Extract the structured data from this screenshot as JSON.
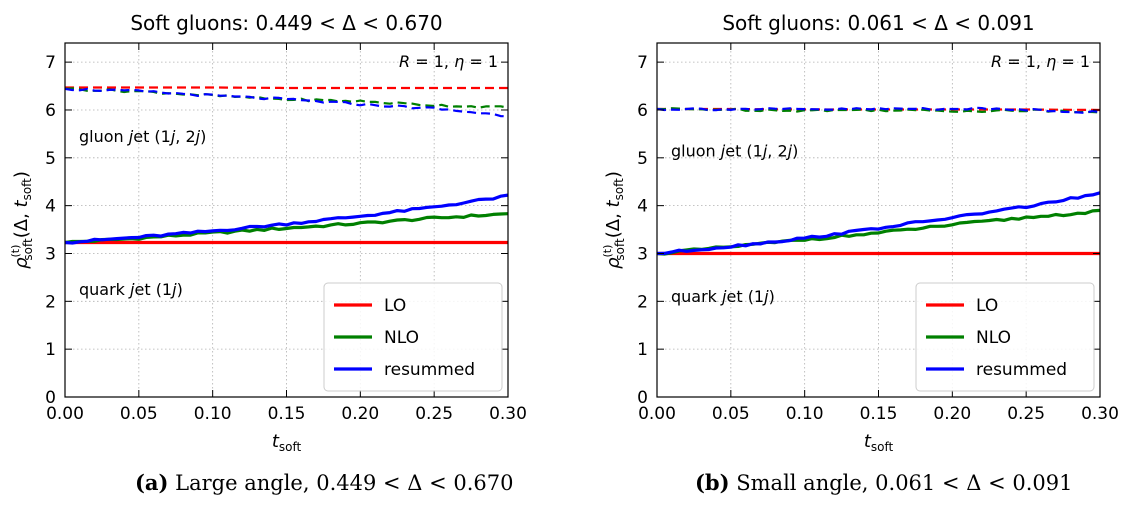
{
  "chart_data": [
    {
      "type": "line",
      "title": "Soft gluons: 0.449 < Δ < 0.670",
      "xlabel": "t_soft",
      "ylabel": "ρ^(t)_soft(Δ, t_soft)",
      "xlim": [
        0.0,
        0.3
      ],
      "ylim": [
        0,
        7.4
      ],
      "xticks": [
        "0.00",
        "0.05",
        "0.10",
        "0.15",
        "0.20",
        "0.25",
        "0.30"
      ],
      "yticks": [
        "0",
        "1",
        "2",
        "3",
        "4",
        "5",
        "6",
        "7"
      ],
      "grid": true,
      "legend_position": "bottom-right",
      "legend": [
        "LO",
        "NLO",
        "resummed"
      ],
      "params_text": "R = 1, η = 1",
      "annotations": [
        "gluon jet (1j, 2j)",
        "quark jet (1j)"
      ],
      "x": [
        0.0,
        0.05,
        0.1,
        0.15,
        0.2,
        0.25,
        0.3
      ],
      "series": [
        {
          "name": "LO",
          "group": "quark jet",
          "style": "solid",
          "color": "#ff0000",
          "values": [
            3.23,
            3.23,
            3.23,
            3.23,
            3.23,
            3.23,
            3.23
          ]
        },
        {
          "name": "NLO",
          "group": "quark jet",
          "style": "solid",
          "color": "#008000",
          "values": [
            3.23,
            3.32,
            3.43,
            3.53,
            3.63,
            3.74,
            3.83
          ]
        },
        {
          "name": "resummed",
          "group": "quark jet",
          "style": "solid",
          "color": "#0000ff",
          "values": [
            3.23,
            3.34,
            3.47,
            3.62,
            3.78,
            3.97,
            4.2
          ]
        },
        {
          "name": "LO",
          "group": "gluon jet",
          "style": "dashed",
          "color": "#ff0000",
          "values": [
            6.47,
            6.47,
            6.47,
            6.46,
            6.46,
            6.46,
            6.46
          ]
        },
        {
          "name": "NLO",
          "group": "gluon jet",
          "style": "dashed",
          "color": "#008000",
          "values": [
            6.44,
            6.39,
            6.3,
            6.22,
            6.18,
            6.1,
            6.05
          ]
        },
        {
          "name": "resummed",
          "group": "gluon jet",
          "style": "dashed",
          "color": "#0000ff",
          "values": [
            6.44,
            6.39,
            6.3,
            6.22,
            6.12,
            6.03,
            5.88
          ]
        }
      ]
    },
    {
      "type": "line",
      "title": "Soft gluons: 0.061 < Δ < 0.091",
      "xlabel": "t_soft",
      "ylabel": "ρ^(t)_soft(Δ, t_soft)",
      "xlim": [
        0.0,
        0.3
      ],
      "ylim": [
        0,
        7.4
      ],
      "xticks": [
        "0.00",
        "0.05",
        "0.10",
        "0.15",
        "0.20",
        "0.25",
        "0.30"
      ],
      "yticks": [
        "0",
        "1",
        "2",
        "3",
        "4",
        "5",
        "6",
        "7"
      ],
      "grid": true,
      "legend_position": "bottom-right",
      "legend": [
        "LO",
        "NLO",
        "resummed"
      ],
      "params_text": "R = 1, η = 1",
      "annotations": [
        "gluon jet (1j, 2j)",
        "quark jet (1j)"
      ],
      "x": [
        0.0,
        0.05,
        0.1,
        0.15,
        0.2,
        0.25,
        0.3
      ],
      "series": [
        {
          "name": "LO",
          "group": "quark jet",
          "style": "solid",
          "color": "#ff0000",
          "values": [
            3.0,
            3.0,
            3.0,
            3.0,
            3.0,
            3.0,
            3.0
          ]
        },
        {
          "name": "NLO",
          "group": "quark jet",
          "style": "solid",
          "color": "#008000",
          "values": [
            3.0,
            3.14,
            3.29,
            3.43,
            3.6,
            3.75,
            3.88
          ]
        },
        {
          "name": "resummed",
          "group": "quark jet",
          "style": "solid",
          "color": "#0000ff",
          "values": [
            3.0,
            3.15,
            3.32,
            3.53,
            3.75,
            3.98,
            4.25
          ]
        },
        {
          "name": "LO",
          "group": "gluon jet",
          "style": "dashed",
          "color": "#ff0000",
          "values": [
            6.02,
            6.02,
            6.01,
            6.01,
            6.01,
            6.01,
            6.0
          ]
        },
        {
          "name": "NLO",
          "group": "gluon jet",
          "style": "dashed",
          "color": "#008000",
          "values": [
            6.02,
            6.01,
            5.99,
            6.0,
            5.98,
            5.99,
            5.97
          ]
        },
        {
          "name": "resummed",
          "group": "gluon jet",
          "style": "dashed",
          "color": "#0000ff",
          "values": [
            6.02,
            6.02,
            6.01,
            6.02,
            6.03,
            6.01,
            5.95
          ]
        }
      ]
    }
  ],
  "captions": [
    {
      "label": "(a)",
      "text": "Large angle, 0.449 < Δ < 0.670"
    },
    {
      "label": "(b)",
      "text": "Small angle, 0.061 < Δ < 0.091"
    }
  ]
}
